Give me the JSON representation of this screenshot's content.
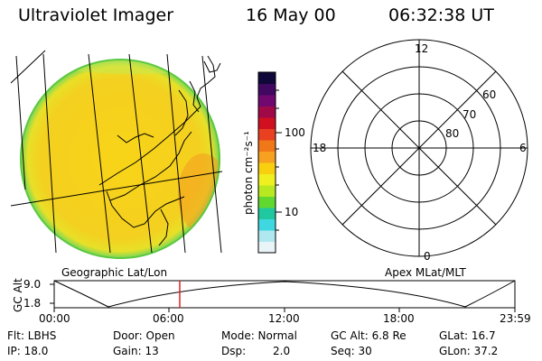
{
  "header": {
    "title": "Ultraviolet Imager",
    "date": "16 May 00",
    "time": "06:32:38 UT"
  },
  "colorbar": {
    "unit_label": "photon cm⁻²s⁻¹",
    "ticks": [
      "100",
      "10"
    ],
    "colors": [
      "#e8f4f8",
      "#b0e8f0",
      "#40d8e0",
      "#20c8a0",
      "#60d830",
      "#b8e820",
      "#f0f020",
      "#f8d010",
      "#f8a020",
      "#f07818",
      "#e84020",
      "#d01020",
      "#a00848",
      "#700870",
      "#400860",
      "#100838"
    ]
  },
  "polar": {
    "mlt_labels": {
      "top": "12",
      "left": "18",
      "right": "6",
      "bottom": "0"
    },
    "lat_labels": [
      "60",
      "70",
      "80"
    ]
  },
  "image_panel": {
    "disk_fill": "#f4d21c",
    "disk_edge": "#78d858"
  },
  "timeline": {
    "left_label": "Geographic Lat/Lon",
    "right_label": "Apex MLat/MLT",
    "y_axis_label": "GC Alt",
    "y_ticks": [
      "9.0",
      "1.8"
    ],
    "x_ticks": [
      "00:00",
      "06:00",
      "12:00",
      "18:00",
      "23:59"
    ],
    "marker_color": "#e02020"
  },
  "info": {
    "filter": "Flt: LBHS",
    "door": "Door: Open",
    "mode": "Mode: Normal",
    "gc_alt": "GC Alt: 6.8 Re",
    "glat": "GLat: 16.7",
    "ip": "IP: 18.0",
    "gain": "Gain: 13",
    "dsp_label": "Dsp:",
    "dsp_value": "2.0",
    "seq": "Seq: 30",
    "glon": "GLon: 37.2"
  }
}
